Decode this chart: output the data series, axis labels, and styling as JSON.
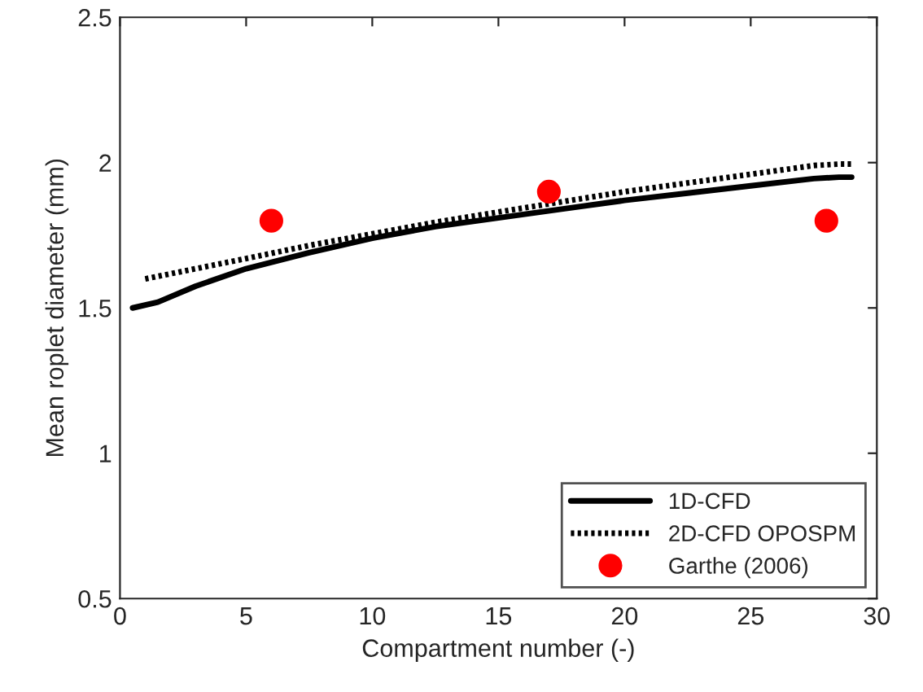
{
  "chart_data": {
    "type": "line",
    "xlabel": "Compartment number (-)",
    "ylabel": "Mean roplet diameter (mm)",
    "xlim": [
      0,
      30
    ],
    "xticks": [
      0,
      5,
      10,
      15,
      20,
      25,
      30
    ],
    "ylim": [
      0.5,
      2.5
    ],
    "yticks": [
      0.5,
      1,
      1.5,
      2,
      2.5
    ],
    "grid": false,
    "legend": "bottom right",
    "series": [
      {
        "name": "1D-CFD",
        "color": "#000000",
        "line_style": "solid",
        "x": [
          0.5,
          1.5,
          3,
          5,
          7.5,
          10,
          12.5,
          15,
          17.5,
          20,
          22.5,
          25,
          27.5,
          28.5,
          29
        ],
        "values": [
          1.5,
          1.52,
          1.575,
          1.635,
          1.69,
          1.74,
          1.78,
          1.81,
          1.84,
          1.87,
          1.895,
          1.92,
          1.945,
          1.95,
          1.95
        ]
      },
      {
        "name": "2D-CFD OPOSPM",
        "color": "#000000",
        "line_style": "dotted",
        "x": [
          1,
          3,
          5,
          7.5,
          10,
          12.5,
          15,
          17.5,
          20,
          22.5,
          25,
          27.5,
          28.5,
          29
        ],
        "values": [
          1.6,
          1.635,
          1.67,
          1.715,
          1.755,
          1.795,
          1.83,
          1.865,
          1.9,
          1.93,
          1.96,
          1.99,
          1.995,
          1.995
        ]
      },
      {
        "name": "Garthe (2006)",
        "type": "scatter",
        "marker": "circle",
        "color": "#ff0000",
        "x": [
          6,
          17,
          28
        ],
        "values": [
          1.8,
          1.9,
          1.8
        ]
      }
    ]
  }
}
